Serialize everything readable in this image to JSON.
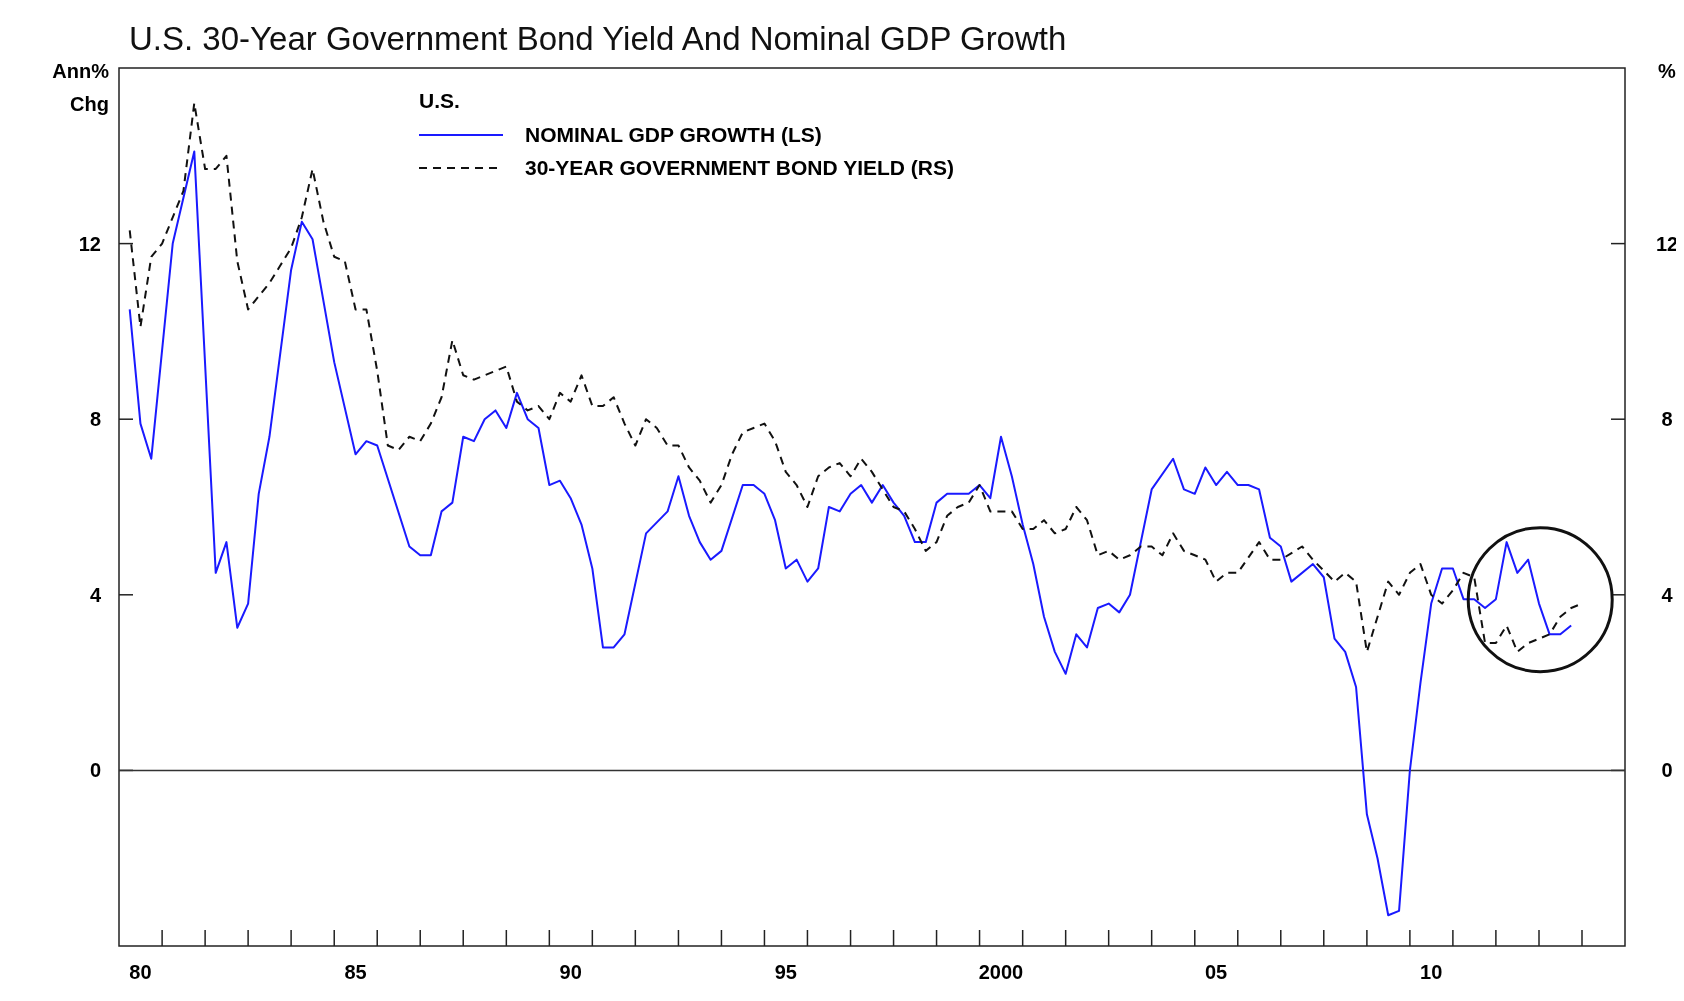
{
  "chart_data": {
    "type": "line",
    "title": "U.S. 30-Year Government Bond Yield And Nominal GDP Growth",
    "ylabel": "Ann% Chg",
    "y2label": "%",
    "legend_title": "U.S.",
    "legend": "top left",
    "grid": false,
    "xlim": [
      "1980",
      "2015"
    ],
    "xticks": [
      {
        "value": "1980-07",
        "label": "80"
      },
      {
        "value": "1985-07",
        "label": "85"
      },
      {
        "value": "1990-07",
        "label": "90"
      },
      {
        "value": "1995-07",
        "label": "95"
      },
      {
        "value": "2000-07",
        "label": "2000"
      },
      {
        "value": "2005-07",
        "label": "05"
      },
      {
        "value": "2010-07",
        "label": "10"
      },
      {
        "value": "1981",
        "label": null
      },
      {
        "value": "1982",
        "label": null
      },
      {
        "value": "1983",
        "label": null
      },
      {
        "value": "1984",
        "label": null
      },
      {
        "value": "1985",
        "label": null
      },
      {
        "value": "1986",
        "label": null
      },
      {
        "value": "1987",
        "label": null
      },
      {
        "value": "1988",
        "label": null
      },
      {
        "value": "1989",
        "label": null
      },
      {
        "value": "1990",
        "label": null
      },
      {
        "value": "1991",
        "label": null
      },
      {
        "value": "1992",
        "label": null
      },
      {
        "value": "1993",
        "label": null
      },
      {
        "value": "1994",
        "label": null
      },
      {
        "value": "1995",
        "label": null
      },
      {
        "value": "1996",
        "label": null
      },
      {
        "value": "1997",
        "label": null
      },
      {
        "value": "1998",
        "label": null
      },
      {
        "value": "1999",
        "label": null
      },
      {
        "value": "2000",
        "label": null
      },
      {
        "value": "2001",
        "label": null
      },
      {
        "value": "2002",
        "label": null
      },
      {
        "value": "2003",
        "label": null
      },
      {
        "value": "2004",
        "label": null
      },
      {
        "value": "2005",
        "label": null
      },
      {
        "value": "2006",
        "label": null
      },
      {
        "value": "2007",
        "label": null
      },
      {
        "value": "2008",
        "label": null
      },
      {
        "value": "2009",
        "label": null
      },
      {
        "value": "2010",
        "label": null
      },
      {
        "value": "2011",
        "label": null
      },
      {
        "value": "2012",
        "label": null
      },
      {
        "value": "2013",
        "label": null
      },
      {
        "value": "2014",
        "label": null
      }
    ],
    "ylim": [
      -4,
      16
    ],
    "yticks": [
      0,
      4,
      8,
      12
    ],
    "y2lim": [
      -4,
      16
    ],
    "y2ticks": [
      0,
      4,
      8,
      12
    ],
    "ref_lines": [
      {
        "axis": "y",
        "value": 0,
        "color": "#333333"
      }
    ],
    "series": [
      {
        "name": "NOMINAL GDP GROWTH (LS)",
        "color": "#1a1aff",
        "line_style": "solid",
        "x": [
          "1980-04",
          "1980-07",
          "1980-10",
          "1981-04",
          "1981-10",
          "1982-04",
          "1982-07",
          "1982-10",
          "1983-01",
          "1983-04",
          "1983-07",
          "1984-01",
          "1984-04",
          "1984-07",
          "1985-01",
          "1985-07",
          "1985-10",
          "1986-01",
          "1986-10",
          "1987-01",
          "1987-04",
          "1987-07",
          "1987-10",
          "1988-01",
          "1988-04",
          "1988-07",
          "1988-10",
          "1989-01",
          "1989-04",
          "1989-07",
          "1989-10",
          "1990-01",
          "1990-04",
          "1990-07",
          "1990-10",
          "1991-01",
          "1991-04",
          "1991-07",
          "1991-10",
          "1992-04",
          "1992-10",
          "1993-01",
          "1993-04",
          "1993-07",
          "1993-10",
          "1994-01",
          "1994-07",
          "1994-10",
          "1995-01",
          "1995-04",
          "1995-07",
          "1995-10",
          "1996-01",
          "1996-04",
          "1996-07",
          "1996-10",
          "1997-01",
          "1997-04",
          "1997-07",
          "1997-10",
          "1998-01",
          "1998-04",
          "1998-07",
          "1998-10",
          "1999-01",
          "1999-04",
          "1999-07",
          "1999-10",
          "2000-01",
          "2000-04",
          "2000-07",
          "2000-10",
          "2001-01",
          "2001-04",
          "2001-07",
          "2001-10",
          "2002-01",
          "2002-04",
          "2002-07",
          "2002-10",
          "2003-01",
          "2003-04",
          "2003-07",
          "2004-01",
          "2004-07",
          "2004-10",
          "2005-01",
          "2005-04",
          "2005-07",
          "2005-10",
          "2006-01",
          "2006-04",
          "2006-07",
          "2006-10",
          "2007-01",
          "2007-04",
          "2007-10",
          "2008-01",
          "2008-04",
          "2008-07",
          "2008-10",
          "2009-01",
          "2009-04",
          "2009-07",
          "2009-10",
          "2010-01",
          "2010-04",
          "2010-07",
          "2010-10",
          "2011-01",
          "2011-04",
          "2011-07",
          "2011-10",
          "2012-01",
          "2012-04",
          "2012-07",
          "2012-10",
          "2013-01",
          "2013-04",
          "2013-07",
          "2013-10"
        ],
        "values": [
          10.5,
          7.9,
          7.1,
          12.0,
          14.1,
          4.5,
          5.2,
          3.25,
          3.8,
          6.3,
          7.6,
          11.4,
          12.5,
          12.1,
          9.3,
          7.2,
          7.5,
          7.4,
          5.1,
          4.9,
          4.9,
          5.9,
          6.1,
          7.6,
          7.5,
          8.0,
          8.2,
          7.8,
          8.6,
          8.0,
          7.8,
          6.5,
          6.6,
          6.2,
          5.6,
          4.6,
          2.8,
          2.8,
          3.1,
          5.4,
          5.9,
          6.7,
          5.8,
          5.2,
          4.8,
          5.0,
          6.5,
          6.5,
          6.3,
          5.7,
          4.6,
          4.8,
          4.3,
          4.6,
          6.0,
          5.9,
          6.3,
          6.5,
          6.1,
          6.5,
          6.1,
          5.8,
          5.2,
          5.2,
          6.1,
          6.3,
          6.3,
          6.3,
          6.5,
          6.2,
          7.6,
          6.7,
          5.6,
          4.7,
          3.5,
          2.7,
          2.2,
          3.1,
          2.8,
          3.7,
          3.8,
          3.6,
          4.0,
          6.4,
          7.1,
          6.4,
          6.3,
          6.9,
          6.5,
          6.8,
          6.5,
          6.5,
          6.4,
          5.3,
          5.1,
          4.3,
          4.7,
          4.4,
          3.0,
          2.7,
          1.9,
          -1.0,
          -2.0,
          -3.3,
          -3.2,
          0.0,
          2.0,
          3.8,
          4.6,
          4.6,
          3.9,
          3.9,
          3.7,
          3.9,
          5.2,
          4.5,
          4.8,
          3.8,
          3.1,
          3.1,
          3.3
        ]
      },
      {
        "name": "30-YEAR GOVERNMENT BOND YIELD (RS)",
        "color": "#111111",
        "line_style": "dashed",
        "x": [
          "1980-04",
          "1980-07",
          "1980-10",
          "1981-01",
          "1981-04",
          "1981-07",
          "1981-10",
          "1982-01",
          "1982-04",
          "1982-07",
          "1982-10",
          "1983-01",
          "1983-04",
          "1983-07",
          "1983-10",
          "1984-01",
          "1984-04",
          "1984-07",
          "1984-10",
          "1985-01",
          "1985-04",
          "1985-07",
          "1985-10",
          "1986-01",
          "1986-04",
          "1986-07",
          "1986-10",
          "1987-01",
          "1987-04",
          "1987-07",
          "1987-10",
          "1988-01",
          "1988-04",
          "1988-07",
          "1988-10",
          "1989-01",
          "1989-04",
          "1989-07",
          "1989-10",
          "1990-01",
          "1990-04",
          "1990-07",
          "1990-10",
          "1991-01",
          "1991-04",
          "1991-07",
          "1991-10",
          "1992-01",
          "1992-04",
          "1992-07",
          "1992-10",
          "1993-01",
          "1993-04",
          "1993-07",
          "1993-10",
          "1994-01",
          "1994-04",
          "1994-07",
          "1994-10",
          "1995-01",
          "1995-04",
          "1995-07",
          "1995-10",
          "1996-01",
          "1996-04",
          "1996-07",
          "1996-10",
          "1997-01",
          "1997-04",
          "1997-07",
          "1997-10",
          "1998-01",
          "1998-04",
          "1998-07",
          "1998-10",
          "1999-01",
          "1999-04",
          "1999-07",
          "1999-10",
          "2000-01",
          "2000-04",
          "2000-07",
          "2000-10",
          "2001-01",
          "2001-04",
          "2001-07",
          "2001-10",
          "2002-01",
          "2002-04",
          "2002-07",
          "2002-10",
          "2003-01",
          "2003-04",
          "2003-07",
          "2003-10",
          "2004-01",
          "2004-04",
          "2004-07",
          "2004-10",
          "2005-01",
          "2005-04",
          "2005-07",
          "2005-10",
          "2006-01",
          "2006-07",
          "2006-10",
          "2007-01",
          "2007-07",
          "2007-10",
          "2008-04",
          "2008-07",
          "2008-10",
          "2009-01",
          "2009-07",
          "2009-10",
          "2010-01",
          "2010-04",
          "2010-07",
          "2010-10",
          "2011-01",
          "2011-04",
          "2011-07",
          "2011-10",
          "2012-01",
          "2012-04",
          "2012-07",
          "2012-10",
          "2013-01",
          "2013-04",
          "2013-07",
          "2013-10",
          "2014-01"
        ],
        "values": [
          12.3,
          10.1,
          11.7,
          12.0,
          12.6,
          13.2,
          15.2,
          13.7,
          13.7,
          14.0,
          11.6,
          10.5,
          10.8,
          11.1,
          11.5,
          11.9,
          12.6,
          13.7,
          12.5,
          11.7,
          11.6,
          10.5,
          10.5,
          9.1,
          7.4,
          7.3,
          7.6,
          7.5,
          7.9,
          8.5,
          9.8,
          9.0,
          8.9,
          9.0,
          9.1,
          9.2,
          8.4,
          8.2,
          8.3,
          8.0,
          8.6,
          8.4,
          9.0,
          8.3,
          8.3,
          8.5,
          7.9,
          7.4,
          8.0,
          7.8,
          7.4,
          7.4,
          6.9,
          6.6,
          6.1,
          6.5,
          7.2,
          7.7,
          7.8,
          7.9,
          7.5,
          6.8,
          6.5,
          6.0,
          6.7,
          6.9,
          7.0,
          6.7,
          7.1,
          6.8,
          6.4,
          6.0,
          5.9,
          5.5,
          5.0,
          5.2,
          5.8,
          6.0,
          6.1,
          6.5,
          5.9,
          5.9,
          5.9,
          5.5,
          5.5,
          5.7,
          5.4,
          5.5,
          6.0,
          5.7,
          4.9,
          5.0,
          4.8,
          4.9,
          5.1,
          5.1,
          4.9,
          5.4,
          5.0,
          4.9,
          4.8,
          4.3,
          4.5,
          4.5,
          5.2,
          4.8,
          4.8,
          5.1,
          4.8,
          4.3,
          4.5,
          4.3,
          2.7,
          4.3,
          4.0,
          4.5,
          4.7,
          4.0,
          3.8,
          4.1,
          4.5,
          4.4,
          2.9,
          2.9,
          3.3,
          2.7,
          2.9,
          3.0,
          3.1,
          3.5,
          3.7,
          3.8
        ]
      }
    ]
  }
}
